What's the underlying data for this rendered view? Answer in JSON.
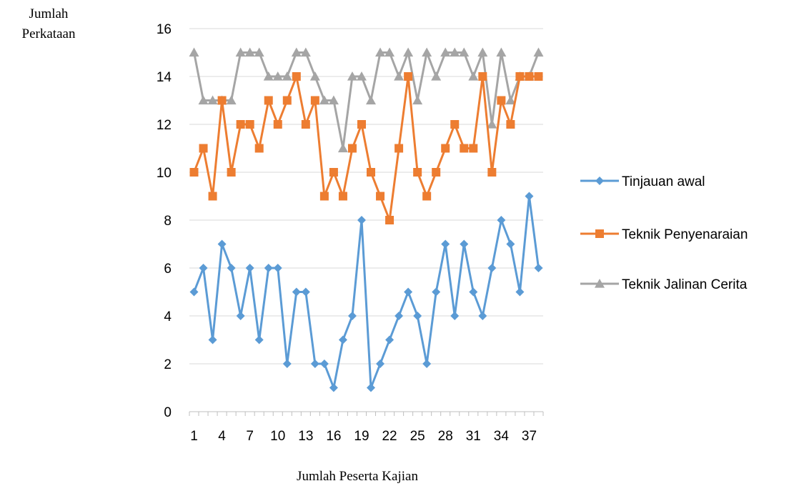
{
  "chart_data": {
    "type": "line",
    "ylabel_lines": [
      "Jumlah",
      "Perkataan"
    ],
    "xlabel": "Jumlah Peserta Kajian",
    "ylim": [
      0,
      16
    ],
    "yticks": [
      0,
      2,
      4,
      6,
      8,
      10,
      12,
      14,
      16
    ],
    "x": [
      1,
      2,
      3,
      4,
      5,
      6,
      7,
      8,
      9,
      10,
      11,
      12,
      13,
      14,
      15,
      16,
      17,
      18,
      19,
      20,
      21,
      22,
      23,
      24,
      25,
      26,
      27,
      28,
      29,
      30,
      31,
      32,
      33,
      34,
      35,
      36,
      37,
      38
    ],
    "xtick_labels": [
      "1",
      "4",
      "7",
      "10",
      "13",
      "16",
      "19",
      "22",
      "25",
      "28",
      "31",
      "34",
      "37"
    ],
    "grid": "horizontal",
    "legend_position": "right",
    "series": [
      {
        "name": "Tinjauan awal",
        "color": "#5B9BD5",
        "marker": "diamond",
        "values": [
          5,
          6,
          3,
          7,
          6,
          4,
          6,
          3,
          6,
          6,
          2,
          5,
          5,
          2,
          2,
          1,
          3,
          4,
          8,
          1,
          2,
          3,
          4,
          5,
          4,
          2,
          5,
          7,
          4,
          7,
          5,
          4,
          6,
          8,
          7,
          5,
          9,
          6
        ]
      },
      {
        "name": "Teknik Penyenaraian",
        "color": "#ED7D31",
        "marker": "square",
        "values": [
          10,
          11,
          9,
          13,
          10,
          12,
          12,
          11,
          13,
          12,
          13,
          14,
          12,
          13,
          9,
          10,
          9,
          11,
          12,
          10,
          9,
          8,
          11,
          14,
          10,
          9,
          10,
          11,
          12,
          11,
          11,
          14,
          10,
          13,
          12,
          14,
          14,
          14
        ]
      },
      {
        "name": "Teknik Jalinan Cerita",
        "color": "#A5A5A5",
        "marker": "triangle",
        "values": [
          15,
          13,
          13,
          13,
          13,
          15,
          15,
          15,
          14,
          14,
          14,
          15,
          15,
          14,
          13,
          13,
          11,
          14,
          14,
          13,
          15,
          15,
          14,
          15,
          13,
          15,
          14,
          15,
          15,
          15,
          14,
          15,
          12,
          15,
          13,
          14,
          14,
          15
        ]
      }
    ]
  }
}
